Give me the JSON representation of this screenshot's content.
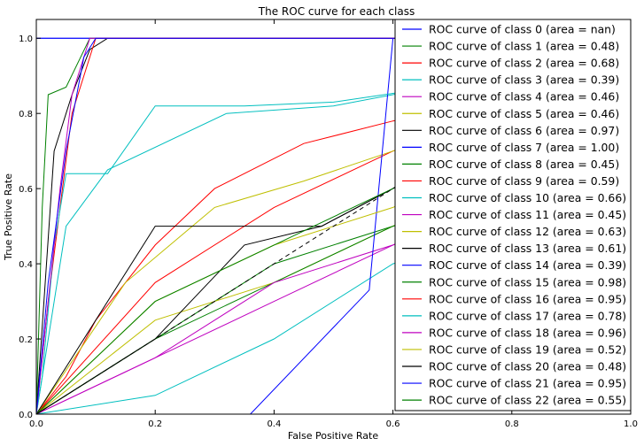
{
  "chart_data": {
    "type": "line",
    "title": "The ROC curve for each class",
    "xlabel": "False Positive Rate",
    "ylabel": "True Positive Rate",
    "xlim": [
      0.0,
      1.0
    ],
    "ylim": [
      0.0,
      1.05
    ],
    "xticks": [
      "0.0",
      "0.2",
      "0.4",
      "0.6",
      "0.8",
      "1.0"
    ],
    "yticks": [
      "0.0",
      "0.2",
      "0.4",
      "0.6",
      "0.8",
      "1.0"
    ],
    "grid": false,
    "legend_position": "top-right",
    "diagonal": {
      "x": [
        0,
        1
      ],
      "y": [
        0,
        1
      ],
      "color": "#000000",
      "dashed": true
    },
    "series": [
      {
        "name": "ROC curve of class 0 (area = nan)",
        "color": "#0000ff",
        "x": [
          0,
          1
        ],
        "y": [
          1.0,
          1.0
        ]
      },
      {
        "name": "ROC curve of class 1 (area = 0.48)",
        "color": "#008000",
        "x": [
          0,
          0.2,
          0.4,
          0.6,
          0.8,
          1.0
        ],
        "y": [
          0.0,
          0.2,
          0.4,
          0.5,
          0.6,
          1.0
        ]
      },
      {
        "name": "ROC curve of class 2 (area = 0.68)",
        "color": "#ff0000",
        "x": [
          0,
          0.05,
          0.1,
          0.2,
          0.3,
          0.45,
          0.6,
          0.8,
          1.0
        ],
        "y": [
          0.0,
          0.1,
          0.25,
          0.45,
          0.6,
          0.72,
          0.78,
          0.85,
          1.0
        ]
      },
      {
        "name": "ROC curve of class 3 (area = 0.39)",
        "color": "#00bfbf",
        "x": [
          0,
          0.2,
          0.4,
          0.6,
          0.8,
          1.0
        ],
        "y": [
          0.0,
          0.05,
          0.2,
          0.4,
          0.5,
          1.0
        ]
      },
      {
        "name": "ROC curve of class 4 (area = 0.46)",
        "color": "#bf00bf",
        "x": [
          0,
          0.2,
          0.4,
          0.6,
          0.8,
          1.0
        ],
        "y": [
          0.0,
          0.15,
          0.3,
          0.45,
          0.6,
          1.0
        ]
      },
      {
        "name": "ROC curve of class 5 (area = 0.46)",
        "color": "#bfbf00",
        "x": [
          0,
          0.2,
          0.4,
          0.6,
          0.8,
          1.0
        ],
        "y": [
          0.0,
          0.25,
          0.35,
          0.5,
          0.65,
          1.0
        ]
      },
      {
        "name": "ROC curve of class 6 (area = 0.97)",
        "color": "#000000",
        "x": [
          0,
          0.03,
          0.06,
          0.09,
          0.12,
          1.0
        ],
        "y": [
          0.0,
          0.7,
          0.85,
          0.97,
          1.0,
          1.0
        ]
      },
      {
        "name": "ROC curve of class 7 (area = 1.00)",
        "color": "#0000ff",
        "x": [
          0,
          0,
          1.0
        ],
        "y": [
          0.0,
          1.0,
          1.0
        ]
      },
      {
        "name": "ROC curve of class 8 (area = 0.45)",
        "color": "#008000",
        "x": [
          0,
          0.2,
          0.4,
          0.6,
          0.8,
          1.0
        ],
        "y": [
          0.0,
          0.2,
          0.35,
          0.5,
          0.6,
          1.0
        ]
      },
      {
        "name": "ROC curve of class 9 (area = 0.59)",
        "color": "#ff0000",
        "x": [
          0,
          0.2,
          0.4,
          0.6,
          0.8,
          1.0
        ],
        "y": [
          0.0,
          0.35,
          0.55,
          0.7,
          0.8,
          1.0
        ]
      },
      {
        "name": "ROC curve of class 10 (area = 0.66)",
        "color": "#00bfbf",
        "x": [
          0,
          0.05,
          0.12,
          0.32,
          0.5,
          0.7,
          1.0
        ],
        "y": [
          0.0,
          0.5,
          0.65,
          0.8,
          0.82,
          0.88,
          1.0
        ]
      },
      {
        "name": "ROC curve of class 11 (area = 0.45)",
        "color": "#bf00bf",
        "x": [
          0,
          0.2,
          0.4,
          0.6,
          0.8,
          1.0
        ],
        "y": [
          0.0,
          0.15,
          0.35,
          0.45,
          0.6,
          1.0
        ]
      },
      {
        "name": "ROC curve of class 12 (area = 0.63)",
        "color": "#bfbf00",
        "x": [
          0,
          0.15,
          0.3,
          0.45,
          0.6,
          0.8,
          1.0
        ],
        "y": [
          0.0,
          0.35,
          0.55,
          0.62,
          0.7,
          0.8,
          1.0
        ]
      },
      {
        "name": "ROC curve of class 13 (area = 0.61)",
        "color": "#000000",
        "x": [
          0,
          0.2,
          0.35,
          0.48,
          0.6,
          0.8,
          1.0
        ],
        "y": [
          0.0,
          0.5,
          0.5,
          0.5,
          0.6,
          0.8,
          1.0
        ]
      },
      {
        "name": "ROC curve of class 14 (area = 0.39)",
        "color": "#0000ff",
        "x": [
          0,
          0.36,
          0.56,
          0.6,
          1.0
        ],
        "y": [
          0.0,
          0.0,
          0.33,
          1.0,
          1.0
        ]
      },
      {
        "name": "ROC curve of class 15 (area = 0.98)",
        "color": "#008000",
        "x": [
          0,
          0.01,
          0.02,
          0.05,
          0.09,
          1.0
        ],
        "y": [
          0.0,
          0.55,
          0.85,
          0.87,
          1.0,
          1.0
        ]
      },
      {
        "name": "ROC curve of class 16 (area = 0.95)",
        "color": "#ff0000",
        "x": [
          0,
          0.02,
          0.04,
          0.06,
          0.1,
          1.0
        ],
        "y": [
          0.0,
          0.3,
          0.55,
          0.8,
          1.0,
          1.0
        ]
      },
      {
        "name": "ROC curve of class 17 (area = 0.78)",
        "color": "#00bfbf",
        "x": [
          0,
          0.01,
          0.03,
          0.05,
          0.12,
          0.2,
          0.35,
          0.5,
          0.8,
          1.0
        ],
        "y": [
          0.0,
          0.1,
          0.45,
          0.64,
          0.64,
          0.82,
          0.82,
          0.83,
          0.9,
          1.0
        ]
      },
      {
        "name": "ROC curve of class 18 (area = 0.96)",
        "color": "#bf00bf",
        "x": [
          0,
          0.02,
          0.04,
          0.06,
          0.09,
          1.0
        ],
        "y": [
          0.0,
          0.3,
          0.6,
          0.85,
          1.0,
          1.0
        ]
      },
      {
        "name": "ROC curve of class 19 (area = 0.52)",
        "color": "#bfbf00",
        "x": [
          0,
          0.2,
          0.4,
          0.6,
          0.8,
          1.0
        ],
        "y": [
          0.0,
          0.3,
          0.45,
          0.55,
          0.7,
          1.0
        ]
      },
      {
        "name": "ROC curve of class 20 (area = 0.48)",
        "color": "#000000",
        "x": [
          0,
          0.2,
          0.35,
          0.48,
          0.6,
          0.8,
          1.0
        ],
        "y": [
          0.0,
          0.2,
          0.45,
          0.5,
          0.6,
          0.8,
          1.0
        ]
      },
      {
        "name": "ROC curve of class 21 (area = 0.95)",
        "color": "#0000ff",
        "x": [
          0,
          0.02,
          0.05,
          0.08,
          0.1,
          1.0
        ],
        "y": [
          0.0,
          0.35,
          0.7,
          0.95,
          1.0,
          1.0
        ]
      },
      {
        "name": "ROC curve of class 22 (area = 0.55)",
        "color": "#008000",
        "x": [
          0,
          0.2,
          0.4,
          0.6,
          0.8,
          1.0
        ],
        "y": [
          0.0,
          0.3,
          0.45,
          0.6,
          0.75,
          1.0
        ]
      }
    ]
  }
}
